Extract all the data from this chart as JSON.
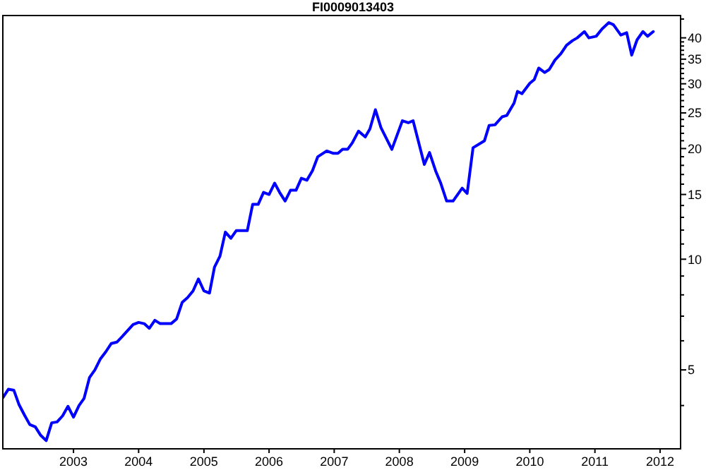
{
  "chart_data": {
    "type": "line",
    "title": "FI0009013403",
    "log": "y",
    "grid": false,
    "line_style": "solid",
    "xlim": [
      "2001-12-01",
      "2012-04-25"
    ],
    "xticks": [
      "2003",
      "2004",
      "2005",
      "2006",
      "2007",
      "2008",
      "2009",
      "2010",
      "2011",
      "2012"
    ],
    "ylim": [
      3.05,
      46
    ],
    "yticks": [
      {
        "value": 4,
        "label": null
      },
      5,
      {
        "value": 6,
        "label": null
      },
      {
        "value": 7,
        "label": null
      },
      {
        "value": 8,
        "label": null
      },
      {
        "value": 9,
        "label": null
      },
      10,
      {
        "value": 11,
        "label": null
      },
      {
        "value": 12,
        "label": null
      },
      {
        "value": 13,
        "label": null
      },
      {
        "value": 14,
        "label": null
      },
      15,
      {
        "value": 16,
        "label": null
      },
      {
        "value": 17,
        "label": null
      },
      {
        "value": 18,
        "label": null
      },
      {
        "value": 19,
        "label": null
      },
      20,
      {
        "value": 21,
        "label": null
      },
      {
        "value": 22,
        "label": null
      },
      {
        "value": 23,
        "label": null
      },
      {
        "value": 24,
        "label": null
      },
      25,
      {
        "value": 26,
        "label": null
      },
      {
        "value": 27,
        "label": null
      },
      {
        "value": 28,
        "label": null
      },
      {
        "value": 29,
        "label": null
      },
      30,
      {
        "value": 31,
        "label": null
      },
      {
        "value": 32,
        "label": null
      },
      {
        "value": 33,
        "label": null
      },
      {
        "value": 34,
        "label": null
      },
      35,
      {
        "value": 36,
        "label": null
      },
      {
        "value": 37,
        "label": null
      },
      {
        "value": 38,
        "label": null
      },
      {
        "value": 39,
        "label": null
      },
      40,
      {
        "value": 45,
        "label": null
      }
    ],
    "x": [
      "2001-12",
      "2002-01",
      "2002-02",
      "2002-03",
      "2002-04",
      "2002-05",
      "2002-06",
      "2002-07",
      "2002-08",
      "2002-09",
      "2002-10",
      "2002-11",
      "2002-12",
      "2003-01",
      "2003-02",
      "2003-03",
      "2003-04",
      "2003-05",
      "2003-06",
      "2003-07",
      "2003-08",
      "2003-09",
      "2003-10",
      "2003-12",
      "2004-01",
      "2004-02",
      "2004-03",
      "2004-04",
      "2004-05",
      "2004-07",
      "2004-08",
      "2004-09",
      "2004-10",
      "2004-11",
      "2004-12",
      "2005-01",
      "2005-02",
      "2005-03",
      "2005-04",
      "2005-05",
      "2005-06",
      "2005-07",
      "2005-09",
      "2005-10",
      "2005-11",
      "2005-12",
      "2006-01",
      "2006-02",
      "2006-03",
      "2006-04",
      "2006-05",
      "2006-06",
      "2006-07",
      "2006-08",
      "2006-09",
      "2006-10",
      "2006-11-20",
      "2006-12-28",
      "2007-01-22",
      "2007-02-17",
      "2007-03-17",
      "2007-04-12",
      "2007-05-17",
      "2007-06-24",
      "2007-07-20",
      "2007-08-20",
      "2007-09-20",
      "2007-11-20",
      "2008-01-18",
      "2008-02-20",
      "2008-03-18",
      "2008-05-20",
      "2008-06-18",
      "2008-07-22",
      "2008-08-20",
      "2008-09-22",
      "2008-10-28",
      "2008-12-18",
      "2009-01-15",
      "2009-02-17",
      "2009-04-22",
      "2009-05-18",
      "2009-06-20",
      "2009-07-30",
      "2009-08-25",
      "2009-10-05",
      "2009-10-24",
      "2009-11-18",
      "2010-01-01",
      "2010-01-26",
      "2010-02-20",
      "2010-03-25",
      "2010-04-20",
      "2010-05-22",
      "2010-06-24",
      "2010-07-26",
      "2010-08-28",
      "2010-09-24",
      "2010-11-03",
      "2010-11-28",
      "2011-01-08",
      "2011-02-10",
      "2011-03-20",
      "2011-04-15",
      "2011-05-26",
      "2011-06-28",
      "2011-07-26",
      "2011-08-25",
      "2011-09-27",
      "2011-10-23",
      "2011-11-24"
    ],
    "values": [
      4.2,
      4.43,
      4.4,
      4.03,
      3.77,
      3.55,
      3.5,
      3.32,
      3.21,
      3.59,
      3.61,
      3.75,
      3.98,
      3.72,
      4.0,
      4.18,
      4.77,
      5.0,
      5.36,
      5.6,
      5.9,
      5.95,
      6.16,
      6.64,
      6.73,
      6.68,
      6.49,
      6.82,
      6.68,
      6.68,
      6.88,
      7.63,
      7.86,
      8.2,
      8.84,
      8.2,
      8.09,
      9.51,
      10.2,
      11.85,
      11.4,
      11.96,
      11.96,
      14.1,
      14.1,
      15.2,
      15.0,
      16.1,
      15.2,
      14.4,
      15.4,
      15.4,
      16.6,
      16.4,
      17.4,
      19.0,
      19.7,
      19.4,
      19.4,
      19.9,
      19.9,
      20.7,
      22.3,
      21.5,
      22.6,
      25.5,
      22.8,
      19.9,
      23.8,
      23.5,
      23.8,
      18.1,
      19.5,
      17.4,
      16.1,
      14.4,
      14.4,
      15.6,
      15.1,
      20.1,
      21.0,
      23.1,
      23.2,
      24.4,
      24.6,
      26.6,
      28.6,
      28.2,
      30.1,
      30.8,
      33.1,
      32.2,
      32.8,
      34.8,
      36.2,
      38.2,
      39.3,
      40.0,
      41.6,
      40.0,
      40.4,
      42.3,
      44.0,
      43.4,
      40.7,
      41.3,
      35.9,
      39.5,
      41.6,
      40.4,
      41.6
    ],
    "color": "#0000ff"
  }
}
